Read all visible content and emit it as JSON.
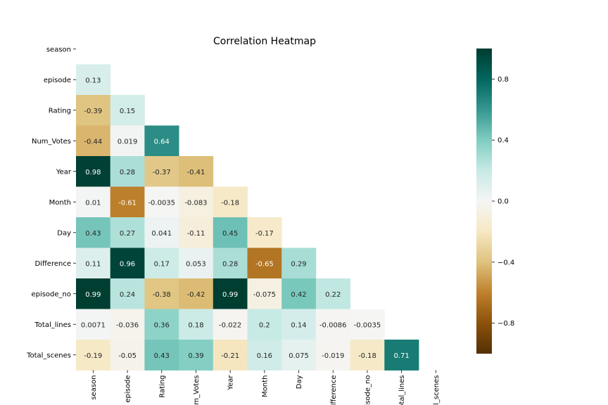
{
  "chart_data": {
    "type": "heatmap",
    "title": "Correlation Heatmap",
    "rows": [
      "season",
      "episode",
      "Rating",
      "Num_Votes",
      "Year",
      "Month",
      "Day",
      "Difference",
      "episode_no",
      "Total_lines",
      "Total_scenes"
    ],
    "columns": [
      "season",
      "episode",
      "Rating",
      "Num_Votes",
      "Year",
      "Month",
      "Day",
      "Difference",
      "episode_no",
      "Total_lines",
      "Total_scenes"
    ],
    "mask": "upper triangle including diagonal",
    "values": [
      [],
      [
        0.13
      ],
      [
        -0.39,
        0.15
      ],
      [
        -0.44,
        0.019,
        0.64
      ],
      [
        0.98,
        0.28,
        -0.37,
        -0.41
      ],
      [
        0.01,
        -0.61,
        -0.0035,
        -0.083,
        -0.18
      ],
      [
        0.43,
        0.27,
        0.041,
        -0.11,
        0.45,
        -0.17
      ],
      [
        0.11,
        0.96,
        0.17,
        0.053,
        0.28,
        -0.65,
        0.29
      ],
      [
        0.99,
        0.24,
        -0.38,
        -0.42,
        0.99,
        -0.075,
        0.42,
        0.22
      ],
      [
        0.0071,
        -0.036,
        0.36,
        0.18,
        -0.022,
        0.2,
        0.14,
        -0.0086,
        -0.0035
      ],
      [
        -0.19,
        -0.05,
        0.43,
        0.39,
        -0.21,
        0.16,
        0.075,
        -0.019,
        -0.18,
        0.71
      ]
    ],
    "labels": [
      [],
      [
        "0.13"
      ],
      [
        "-0.39",
        "0.15"
      ],
      [
        "-0.44",
        "0.019",
        "0.64"
      ],
      [
        "0.98",
        "0.28",
        "-0.37",
        "-0.41"
      ],
      [
        "0.01",
        "-0.61",
        "-0.0035",
        "-0.083",
        "-0.18"
      ],
      [
        "0.43",
        "0.27",
        "0.041",
        "-0.11",
        "0.45",
        "-0.17"
      ],
      [
        "0.11",
        "0.96",
        "0.17",
        "0.053",
        "0.28",
        "-0.65",
        "0.29"
      ],
      [
        "0.99",
        "0.24",
        "-0.38",
        "-0.42",
        "0.99",
        "-0.075",
        "0.42",
        "0.22"
      ],
      [
        "0.0071",
        "-0.036",
        "0.36",
        "0.18",
        "-0.022",
        "0.2",
        "0.14",
        "-0.0086",
        "-0.0035"
      ],
      [
        "-0.19",
        "-0.05",
        "0.43",
        "0.39",
        "-0.21",
        "0.16",
        "0.075",
        "-0.019",
        "-0.18",
        "0.71"
      ]
    ],
    "colorbar": {
      "colormap": "BrBG",
      "vmin": -1,
      "vmax": 1,
      "ticks": [
        0.8,
        0.4,
        0.0,
        -0.4,
        -0.8
      ],
      "tick_labels": [
        "0.8",
        "0.4",
        "0.0",
        "−0.4",
        "−0.8"
      ]
    }
  }
}
